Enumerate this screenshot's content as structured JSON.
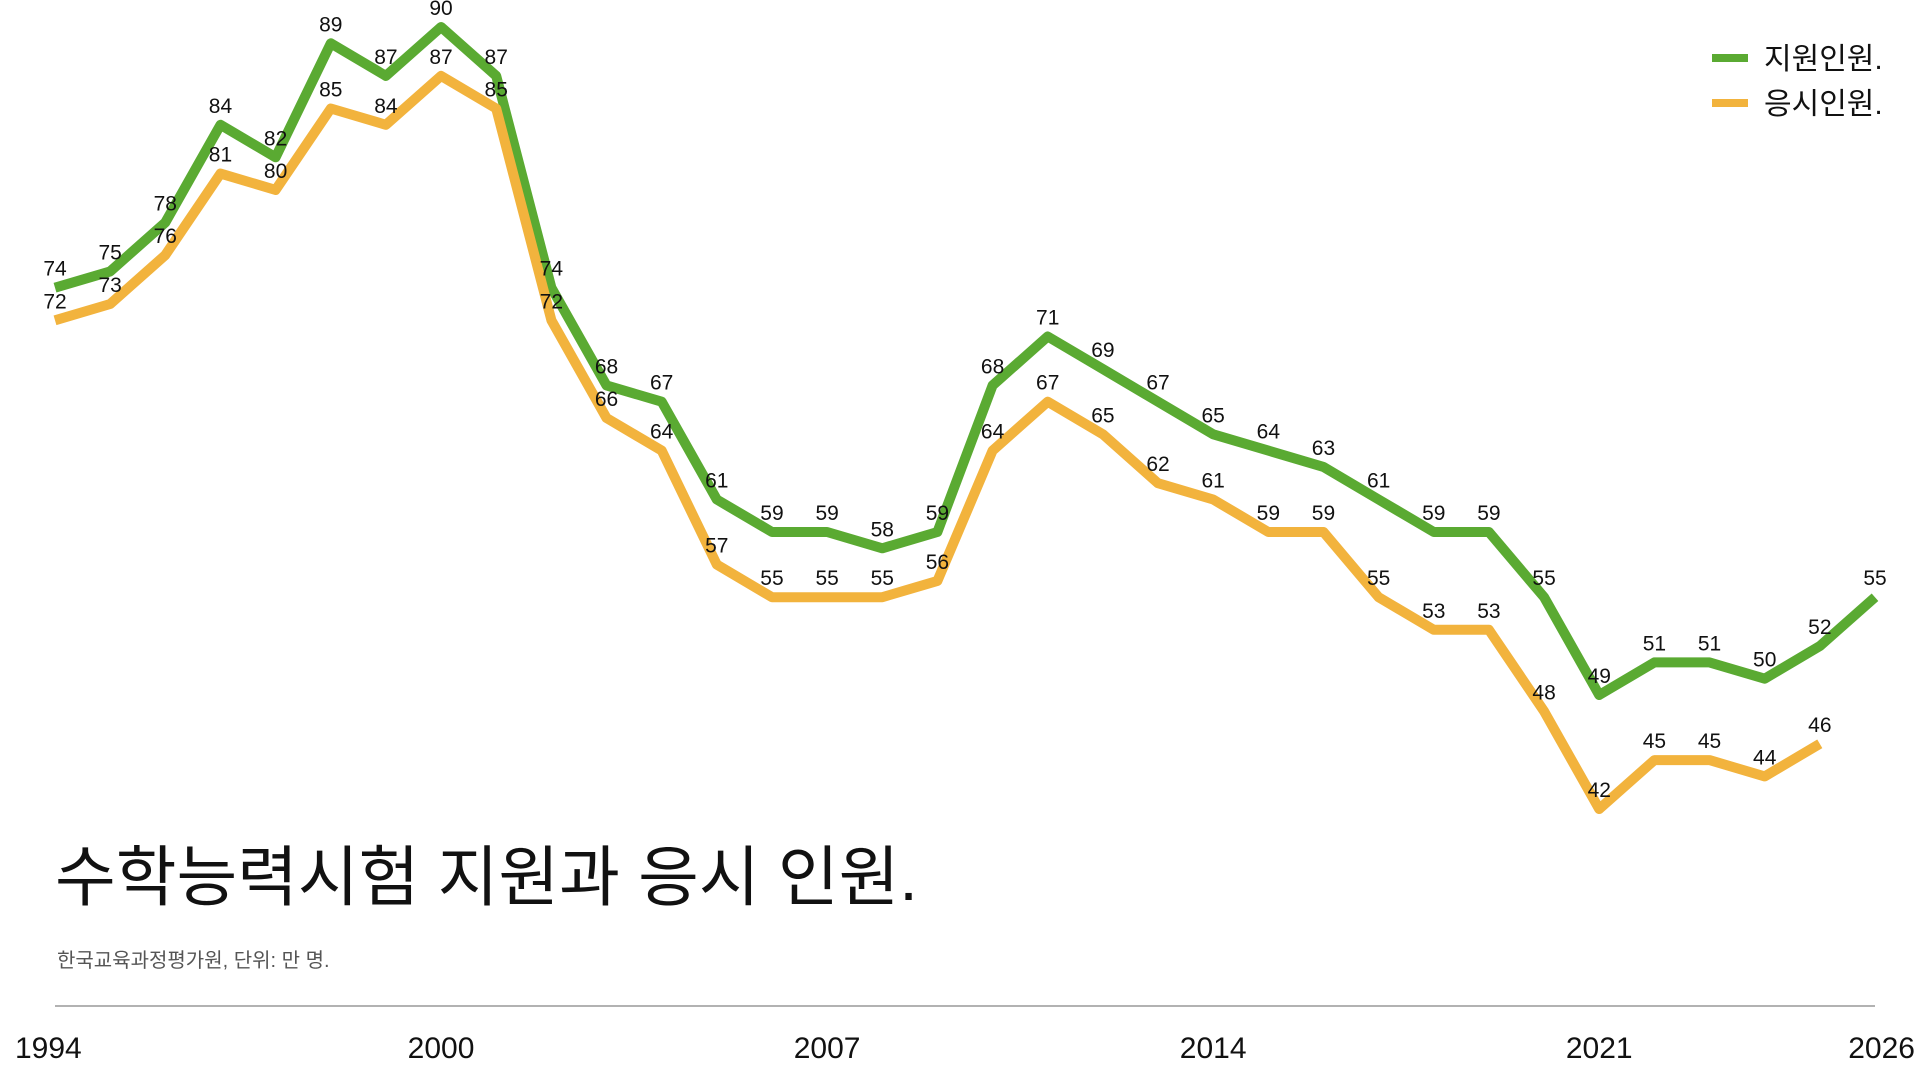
{
  "chart_data": {
    "type": "line",
    "title": "수학능력시험 지원과 응시 인원.",
    "subtitle": "한국교육과정평가원, 단위: 만 명.",
    "categories": [
      "1994",
      null,
      null,
      null,
      null,
      null,
      null,
      "2000",
      null,
      null,
      null,
      null,
      null,
      null,
      "2007",
      null,
      null,
      null,
      null,
      null,
      null,
      "2014",
      null,
      null,
      null,
      null,
      null,
      null,
      "2021",
      null,
      null,
      null,
      null,
      "2026"
    ],
    "series": [
      {
        "name": "지원인원.",
        "color": "#5aaa32",
        "values": [
          74,
          75,
          78,
          84,
          82,
          89,
          87,
          90,
          87,
          74,
          68,
          67,
          61,
          59,
          59,
          58,
          59,
          68,
          71,
          69,
          67,
          65,
          64,
          63,
          61,
          59,
          59,
          55,
          49,
          51,
          51,
          50,
          52,
          55
        ]
      },
      {
        "name": "응시인원.",
        "color": "#f2b33d",
        "values": [
          72,
          73,
          76,
          81,
          80,
          85,
          84,
          87,
          85,
          72,
          66,
          64,
          57,
          55,
          55,
          55,
          56,
          64,
          67,
          65,
          62,
          61,
          59,
          59,
          55,
          53,
          53,
          48,
          42,
          45,
          45,
          44,
          46,
          null
        ]
      }
    ],
    "legend": "top-right"
  }
}
